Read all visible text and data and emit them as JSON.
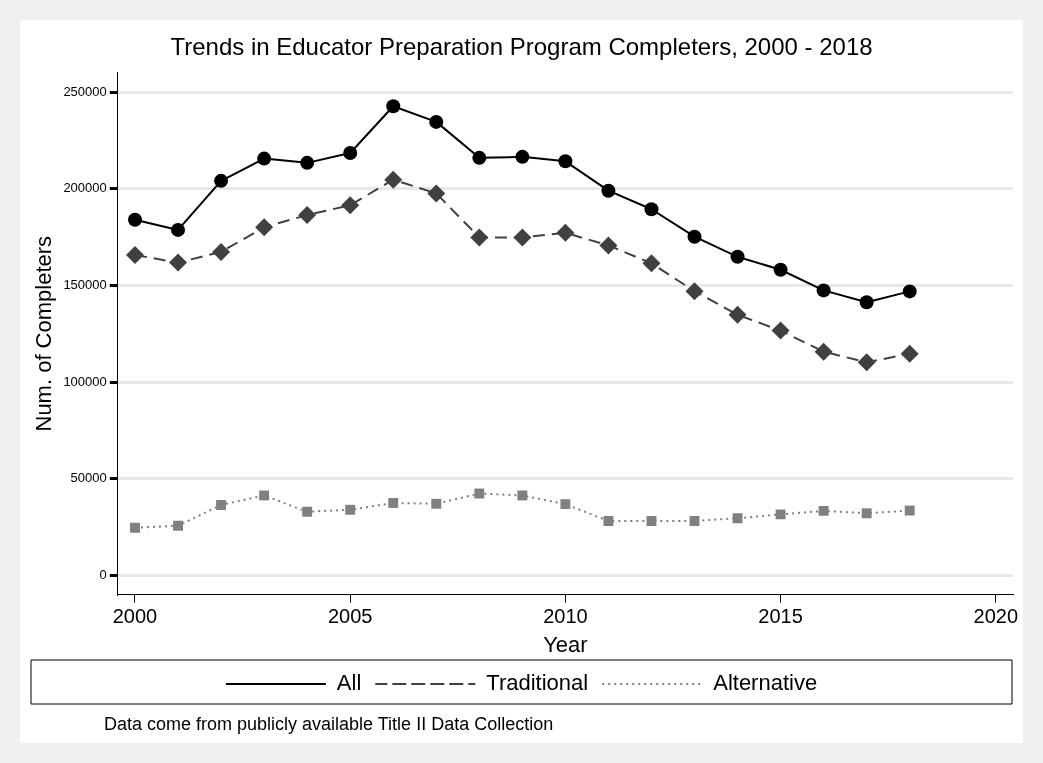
{
  "chart_data": {
    "type": "line",
    "title": "Trends in Educator Preparation Program Completers, 2000 - 2018",
    "xlabel": "Year",
    "ylabel": "Num. of Completers",
    "x": [
      2000,
      2001,
      2002,
      2003,
      2004,
      2005,
      2006,
      2007,
      2008,
      2009,
      2010,
      2011,
      2012,
      2013,
      2014,
      2015,
      2016,
      2017,
      2018
    ],
    "series": [
      {
        "name": "All",
        "color": "#000000",
        "marker": "circle",
        "line_style": "solid",
        "values": [
          184000,
          178700,
          204100,
          215600,
          213400,
          218500,
          242700,
          234600,
          216000,
          216500,
          214200,
          199000,
          189400,
          175200,
          164800,
          158100,
          147400,
          141300,
          146900
        ]
      },
      {
        "name": "Traditional",
        "color": "#404040",
        "marker": "diamond",
        "line_style": "dashed",
        "values": [
          165700,
          161800,
          167300,
          180100,
          186400,
          191500,
          204700,
          197600,
          174800,
          174800,
          177200,
          170700,
          161400,
          147000,
          134800,
          126600,
          115700,
          110200,
          114600
        ]
      },
      {
        "name": "Alternative",
        "color": "#808080",
        "marker": "square",
        "line_style": "dotted",
        "values": [
          24600,
          25600,
          36400,
          41300,
          32900,
          33900,
          37400,
          37000,
          42300,
          41300,
          36800,
          28100,
          28100,
          28100,
          29500,
          31500,
          33300,
          32100,
          33500
        ]
      }
    ],
    "xlim": [
      1999.6,
      2020.4
    ],
    "xticks": [
      2000,
      2005,
      2010,
      2015,
      2020
    ],
    "ylim": [
      -10000,
      260000
    ],
    "yticks": [
      0,
      50000,
      100000,
      150000,
      200000,
      250000
    ],
    "grid": "y",
    "legend": "bottom",
    "annotations": [
      "Data come from publicly available Title II Data Collection"
    ]
  }
}
